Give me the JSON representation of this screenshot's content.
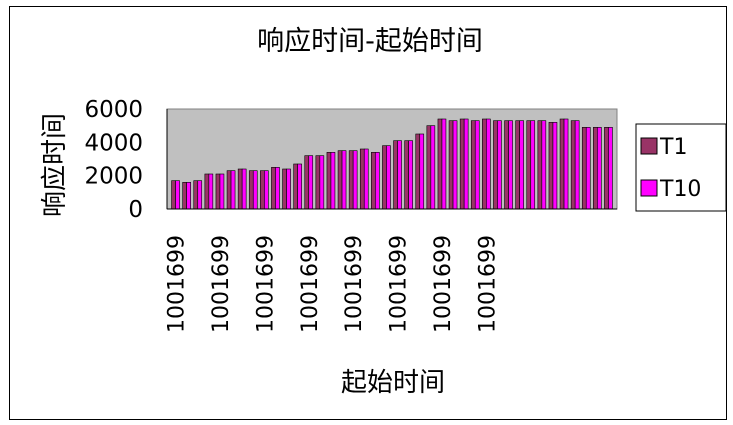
{
  "chart_data": {
    "type": "bar",
    "title": "响应时间-起始时间",
    "xlabel": "起始时间",
    "ylabel": "响应时间",
    "ylim": [
      0,
      6000
    ],
    "yticks": [
      0,
      2000,
      4000,
      6000
    ],
    "x_tick_labels": [
      "1001699",
      "1001699",
      "1001699",
      "1001699",
      "1001699",
      "1001699",
      "1001699",
      "1001699"
    ],
    "x_tick_every": 4,
    "grid": false,
    "legend_position": "right",
    "plot_background": "#c0c0c0",
    "series": [
      {
        "name": "T1",
        "color": "#993366",
        "values": [
          1700,
          1600,
          1700,
          2100,
          2100,
          2300,
          2400,
          2300,
          2300,
          2500,
          2400,
          2700,
          3200,
          3200,
          3400,
          3500,
          3500,
          3600,
          3400,
          3800,
          4100,
          4100,
          4500,
          5000,
          5400,
          5300,
          5400,
          5300,
          5400,
          5300,
          5300,
          5300,
          5300,
          5300,
          5200,
          5400,
          5300,
          4900,
          4900,
          4900
        ]
      },
      {
        "name": "T10",
        "color": "#ff00ff",
        "values": [
          1700,
          1600,
          1700,
          2100,
          2100,
          2300,
          2400,
          2300,
          2300,
          2500,
          2400,
          2700,
          3200,
          3200,
          3400,
          3500,
          3500,
          3600,
          3400,
          3800,
          4100,
          4100,
          4500,
          5000,
          5400,
          5300,
          5400,
          5300,
          5400,
          5300,
          5300,
          5300,
          5300,
          5300,
          5200,
          5400,
          5300,
          4900,
          4900,
          4900
        ]
      }
    ]
  }
}
